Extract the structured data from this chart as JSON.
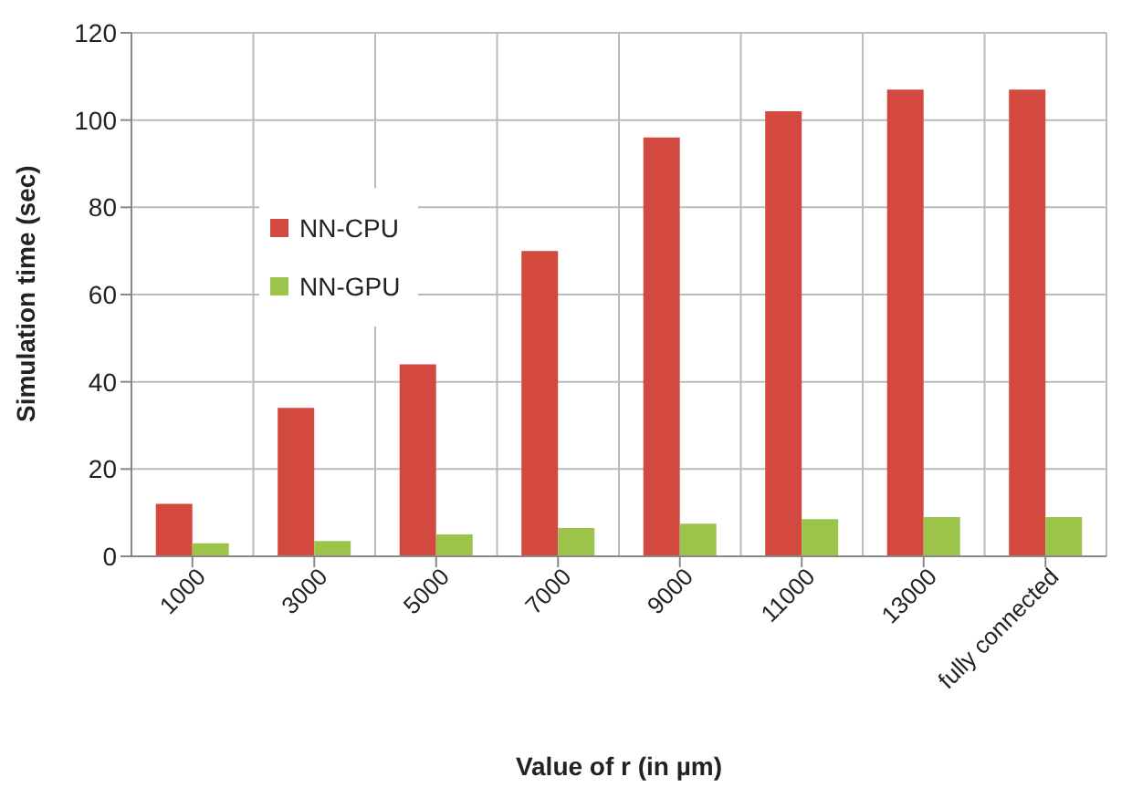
{
  "chart_data": {
    "type": "bar",
    "xlabel": "Value of r (in µm)",
    "ylabel": "Simulation time (sec)",
    "categories": [
      "1000",
      "3000",
      "5000",
      "7000",
      "9000",
      "11000",
      "13000",
      "fully connected"
    ],
    "series": [
      {
        "name": "NN-CPU",
        "color": "#d4493f",
        "values": [
          12,
          34,
          44,
          70,
          96,
          102,
          107,
          107
        ]
      },
      {
        "name": "NN-GPU",
        "color": "#9cc44a",
        "values": [
          3,
          3.5,
          5,
          6.5,
          7.5,
          8.5,
          9,
          9
        ]
      }
    ],
    "ylim": [
      0,
      120
    ],
    "yticks": [
      0,
      20,
      40,
      60,
      80,
      100,
      120
    ],
    "grid": true,
    "legend": "left"
  }
}
